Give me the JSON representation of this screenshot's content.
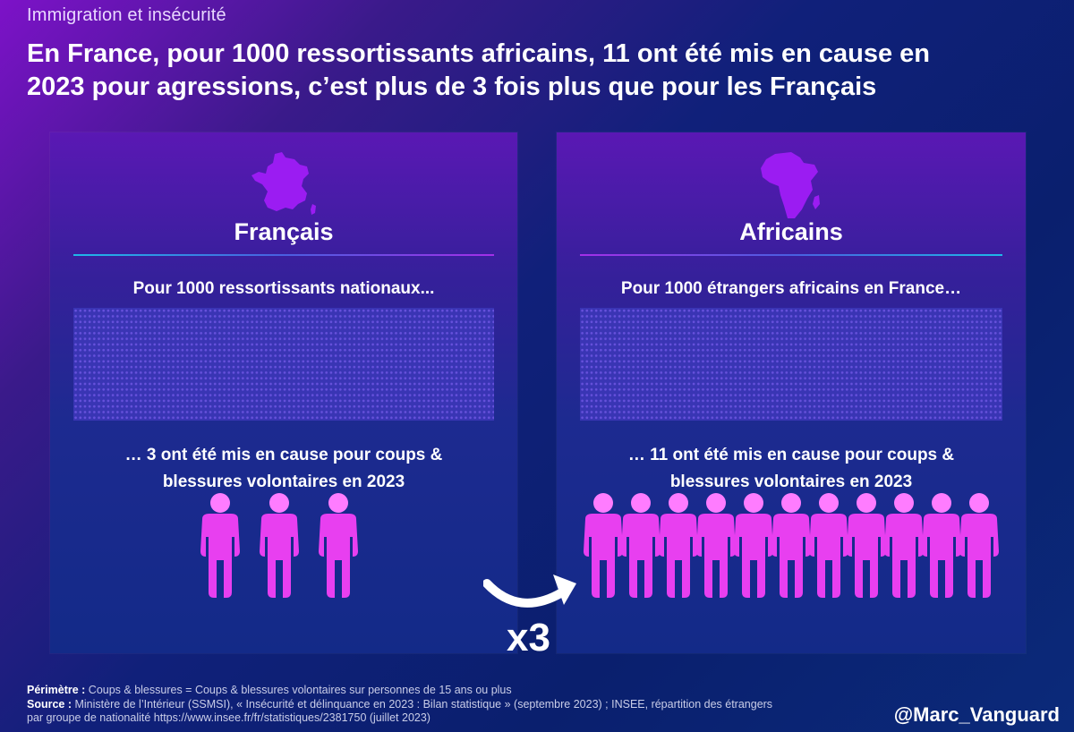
{
  "header": {
    "kicker": "Immigration et insécurité",
    "headline_line1": "En France, pour 1000 ressortissants africains, 11 ont été mis en cause en",
    "headline_line2": "2023 pour agressions, c’est plus de 3 fois plus que pour les Français"
  },
  "panels": [
    {
      "title": "Français",
      "map_icon": "france-map-icon",
      "intro": "Pour 1000 ressortissants nationaux...",
      "result_line1": "… 3 ont été mis en cause pour coups &",
      "result_line2": "blessures volontaires en 2023",
      "people_count": 3,
      "base_population": 1000
    },
    {
      "title": "Africains",
      "map_icon": "africa-map-icon",
      "intro": "Pour 1000 étrangers africains en France…",
      "result_line1": "… 11 ont été mis en cause pour coups &",
      "result_line2": "blessures volontaires en 2023",
      "people_count": 11,
      "base_population": 1000
    }
  ],
  "comparison": {
    "multiplier": "x3",
    "arrow_icon": "curved-arrow-icon"
  },
  "footer": {
    "perimeter_label": "Périmètre :",
    "perimeter_text": " Coups & blessures = Coups & blessures volontaires sur personnes de 15 ans ou plus",
    "source_label": "Source :",
    "source_text_line1": " Ministère de l’Intérieur (SSMSI), « Insécurité et délinquance en 2023 : Bilan statistique » (septembre 2023) ; INSEE, répartition des étrangers",
    "source_text_line2": "par groupe de nationalité https://www.insee.fr/fr/statistiques/2381750 (juillet 2023)"
  },
  "handle": "@Marc_Vanguard",
  "colors": {
    "person": "#e83ff0",
    "person_light": "#ff7cff",
    "map": "#9b1cf2",
    "background_top": "#7d12c8",
    "background_bottom": "#0b2a7a"
  }
}
